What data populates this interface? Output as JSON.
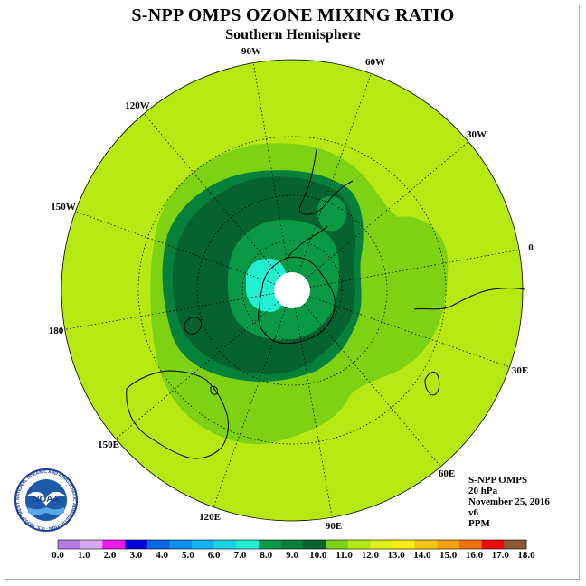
{
  "title": "S-NPP OMPS OZONE MIXING RATIO",
  "subtitle": "Southern Hemisphere",
  "longitude_labels": [
    {
      "id": "lon-90w",
      "text": "90W"
    },
    {
      "id": "lon-60w",
      "text": "60W"
    },
    {
      "id": "lon-30w",
      "text": "30W"
    },
    {
      "id": "lon-0",
      "text": "0"
    },
    {
      "id": "lon-30e",
      "text": "30E"
    },
    {
      "id": "lon-60e",
      "text": "60E"
    },
    {
      "id": "lon-90e",
      "text": "90E"
    },
    {
      "id": "lon-120e",
      "text": "120E"
    },
    {
      "id": "lon-150e",
      "text": "150E"
    },
    {
      "id": "lon-180",
      "text": "180"
    },
    {
      "id": "lon-150w",
      "text": "150W"
    },
    {
      "id": "lon-120w",
      "text": "120W"
    }
  ],
  "info": {
    "instrument": "S-NPP OMPS",
    "level": "20 hPa",
    "date": "November 25, 2016",
    "version": "v6",
    "units": "PPM"
  },
  "logo": {
    "name": "noaa-logo",
    "text": "NOAA",
    "ring_text": "NATIONAL OCEANIC AND ATMOSPHERIC ADMINISTRATION · U.S. DEPARTMENT OF COMMERCE"
  },
  "colorbar": {
    "ticks": [
      "0.0",
      "1.0",
      "2.0",
      "3.0",
      "4.0",
      "5.0",
      "6.0",
      "7.0",
      "8.0",
      "9.0",
      "10.0",
      "11.0",
      "12.0",
      "13.0",
      "14.0",
      "15.0",
      "16.0",
      "17.0",
      "18.0"
    ],
    "colors": [
      "#b57be8",
      "#d8a8f0",
      "#ee18ee",
      "#0000dd",
      "#0a66e6",
      "#0a8ef0",
      "#14b4f0",
      "#1ed2e6",
      "#22eed2",
      "#0a9a46",
      "#06803a",
      "#06622e",
      "#7ed214",
      "#b6e812",
      "#dcf014",
      "#f6ee10",
      "#f6c412",
      "#f6a010",
      "#f67010",
      "#ee0808",
      "#8a5a38"
    ]
  }
}
